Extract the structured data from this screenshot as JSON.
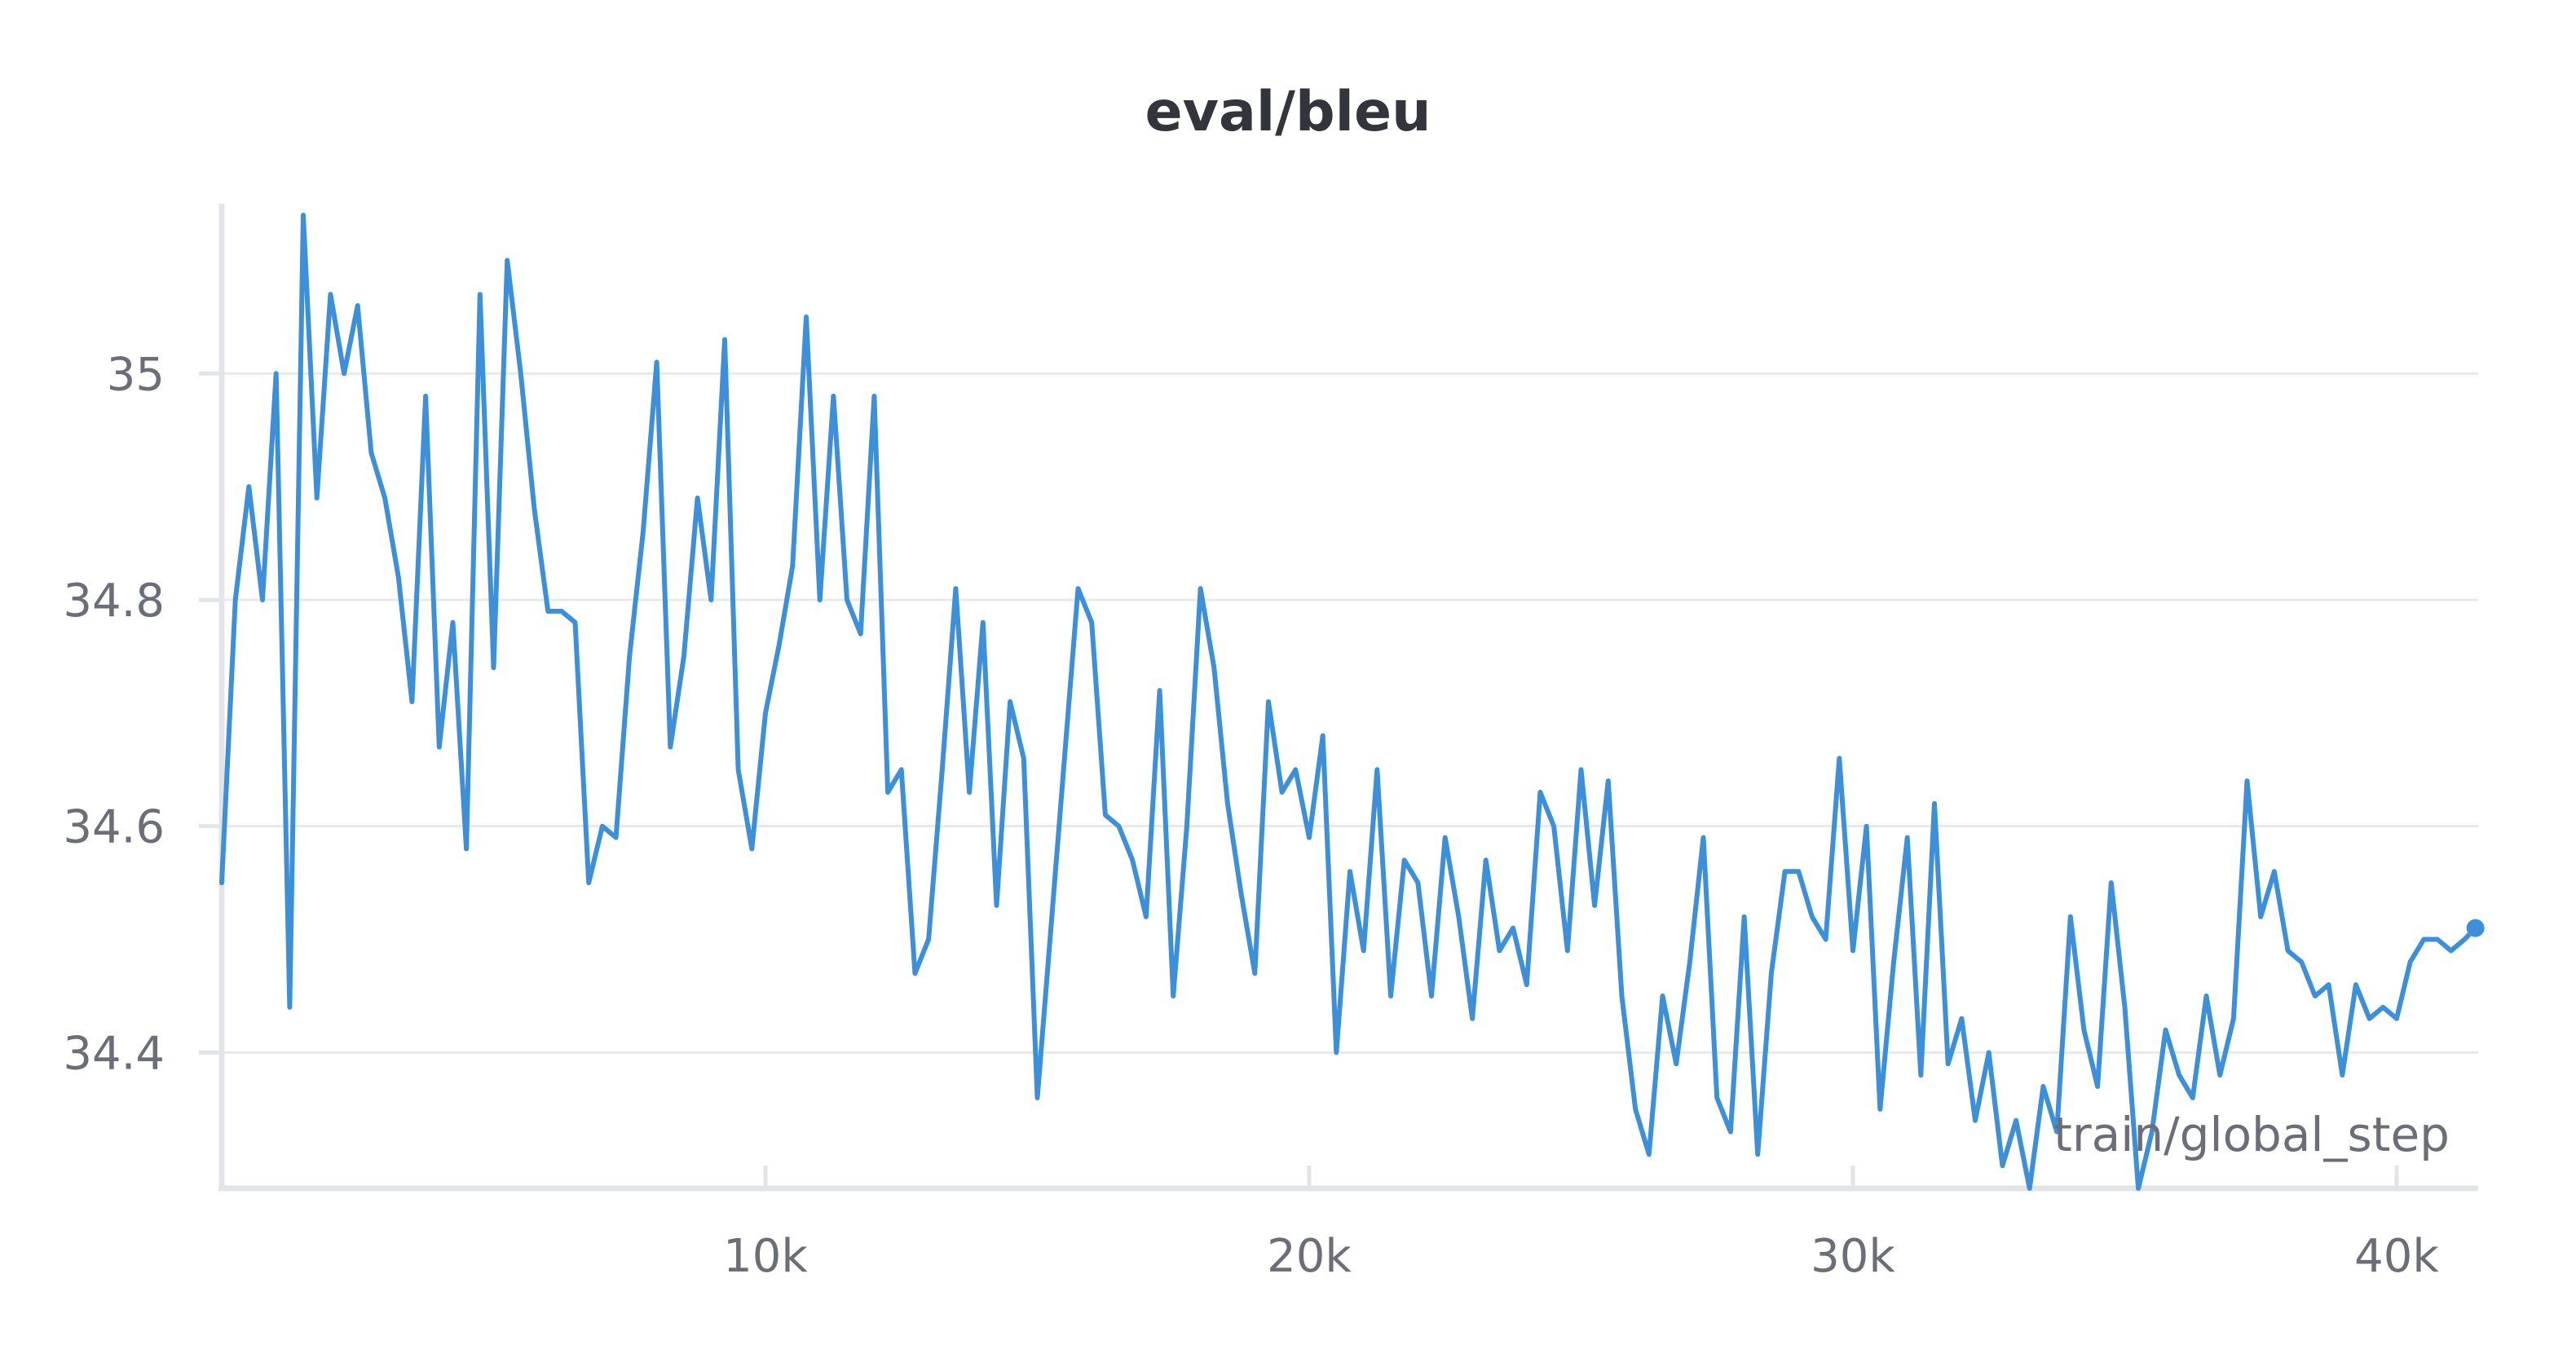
{
  "chart_data": {
    "type": "line",
    "title": "eval/bleu",
    "xlabel": "train/global_step",
    "ylabel": "",
    "xlim": [
      0,
      41500
    ],
    "ylim": [
      34.28,
      35.15
    ],
    "x_ticks": [
      10000,
      20000,
      30000,
      40000
    ],
    "x_tick_labels": [
      "10k",
      "20k",
      "30k",
      "40k"
    ],
    "y_ticks": [
      34.4,
      34.6,
      34.8,
      35.0
    ],
    "y_tick_labels": [
      "34.4",
      "34.6",
      "34.8",
      "35"
    ],
    "grid": true,
    "line_color": "#3c8fd9",
    "series": [
      {
        "x": [
          0,
          250,
          500,
          750,
          1000,
          1250,
          1500,
          1750,
          2000,
          2250,
          2500,
          2750,
          3000,
          3250,
          3500,
          3750,
          4000,
          4250,
          4500,
          4750,
          5000,
          5250,
          5500,
          5750,
          6000,
          6250,
          6500,
          6750,
          7000,
          7250,
          7500,
          7750,
          8000,
          8250,
          8500,
          8750,
          9000,
          9250,
          9500,
          9750,
          10000,
          10250,
          10500,
          10750,
          11000,
          11250,
          11500,
          11750,
          12000,
          12250,
          12500,
          12750,
          13000,
          13250,
          13500,
          13750,
          14000,
          14250,
          14500,
          14750,
          15000,
          15250,
          15500,
          15750,
          16000,
          16250,
          16500,
          16750,
          17000,
          17250,
          17500,
          17750,
          18000,
          18250,
          18500,
          18750,
          19000,
          19250,
          19500,
          19750,
          20000,
          20250,
          20500,
          20750,
          21000,
          21250,
          21500,
          21750,
          22000,
          22250,
          22500,
          22750,
          23000,
          23250,
          23500,
          23750,
          24000,
          24250,
          24500,
          24750,
          25000,
          25250,
          25500,
          25750,
          26000,
          26250,
          26500,
          26750,
          27000,
          27250,
          27500,
          27750,
          28000,
          28250,
          28500,
          28750,
          29000,
          29250,
          29500,
          29750,
          30000,
          30250,
          30500,
          30750,
          31000,
          31250,
          31500,
          31750,
          32000,
          32250,
          32500,
          32750,
          33000,
          33250,
          33500,
          33750,
          34000,
          34250,
          34500,
          34750,
          35000,
          35250,
          35500,
          35750,
          36000,
          36250,
          36500,
          36750,
          37000,
          37250,
          37500,
          37750,
          38000,
          38250,
          38500,
          38750,
          39000,
          39250,
          39500,
          39750,
          40000,
          40250,
          40500,
          40750,
          41000,
          41250,
          41450
        ],
        "y": [
          34.55,
          34.8,
          34.9,
          34.8,
          35.0,
          34.44,
          35.14,
          34.89,
          35.07,
          35.0,
          35.06,
          34.93,
          34.89,
          34.82,
          34.71,
          34.98,
          34.67,
          34.78,
          34.58,
          35.07,
          34.74,
          35.1,
          35.0,
          34.88,
          34.79,
          34.79,
          34.78,
          34.55,
          34.6,
          34.59,
          34.75,
          34.86,
          35.01,
          34.67,
          34.75,
          34.89,
          34.8,
          35.03,
          34.65,
          34.58,
          34.7,
          34.76,
          34.83,
          35.05,
          34.8,
          34.98,
          34.8,
          34.77,
          34.98,
          34.63,
          34.65,
          34.47,
          34.5,
          34.65,
          34.81,
          34.63,
          34.78,
          34.53,
          34.71,
          34.66,
          34.36,
          34.51,
          34.66,
          34.81,
          34.78,
          34.61,
          34.6,
          34.57,
          34.52,
          34.72,
          34.45,
          34.6,
          34.81,
          34.74,
          34.62,
          34.54,
          34.47,
          34.71,
          34.63,
          34.65,
          34.59,
          34.68,
          34.4,
          34.56,
          34.49,
          34.65,
          34.45,
          34.57,
          34.55,
          34.45,
          34.59,
          34.52,
          34.43,
          34.57,
          34.49,
          34.51,
          34.46,
          34.63,
          34.6,
          34.49,
          34.65,
          34.53,
          34.64,
          34.45,
          34.35,
          34.31,
          34.45,
          34.39,
          34.48,
          34.59,
          34.36,
          34.33,
          34.52,
          34.31,
          34.47,
          34.56,
          34.56,
          34.52,
          34.5,
          34.66,
          34.49,
          34.6,
          34.35,
          34.48,
          34.59,
          34.38,
          34.62,
          34.39,
          34.43,
          34.34,
          34.4,
          34.3,
          34.34,
          34.28,
          34.37,
          34.33,
          34.52,
          34.42,
          34.37,
          34.55,
          34.44,
          34.28,
          34.33,
          34.42,
          34.38,
          34.36,
          34.45,
          34.38,
          34.43,
          34.64,
          34.52,
          34.56,
          34.49,
          34.48,
          34.45,
          34.46,
          34.38,
          34.46,
          34.43,
          34.44,
          34.43,
          34.48,
          34.5,
          34.5,
          34.49,
          34.5,
          34.51
        ]
      }
    ]
  }
}
